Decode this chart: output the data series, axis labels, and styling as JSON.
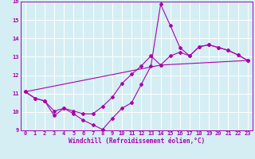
{
  "xlabel": "Windchill (Refroidissement éolien,°C)",
  "xlim": [
    -0.5,
    23.5
  ],
  "ylim": [
    9,
    16
  ],
  "yticks": [
    9,
    10,
    11,
    12,
    13,
    14,
    15,
    16
  ],
  "xticks": [
    0,
    1,
    2,
    3,
    4,
    5,
    6,
    7,
    8,
    9,
    10,
    11,
    12,
    13,
    14,
    15,
    16,
    17,
    18,
    19,
    20,
    21,
    22,
    23
  ],
  "bg_color": "#d4eef4",
  "line_color": "#aa00aa",
  "grid_color": "#ffffff",
  "line1_x": [
    0,
    1,
    2,
    3,
    4,
    5,
    6,
    7,
    8,
    9,
    10,
    11,
    12,
    13,
    14,
    15,
    16,
    17,
    18,
    19,
    20,
    21,
    22,
    23
  ],
  "line1_y": [
    11.1,
    10.75,
    10.6,
    9.8,
    10.2,
    9.9,
    9.55,
    9.3,
    9.05,
    9.65,
    10.2,
    10.5,
    11.5,
    12.5,
    15.85,
    14.7,
    13.5,
    13.05,
    13.55,
    13.65,
    13.5,
    13.35,
    13.1,
    12.8
  ],
  "line2_x": [
    0,
    1,
    2,
    3,
    4,
    5,
    6,
    7,
    8,
    9,
    10,
    11,
    12,
    13,
    14,
    15,
    16,
    17,
    18,
    19,
    20,
    21,
    22,
    23
  ],
  "line2_y": [
    11.1,
    10.75,
    10.6,
    10.05,
    10.2,
    10.05,
    9.9,
    9.9,
    10.3,
    10.8,
    11.55,
    12.05,
    12.5,
    13.05,
    12.55,
    13.05,
    13.25,
    13.05,
    13.55,
    13.65,
    13.5,
    13.35,
    13.1,
    12.8
  ],
  "line3_x": [
    0,
    14,
    23
  ],
  "line3_y": [
    11.1,
    12.55,
    12.8
  ]
}
